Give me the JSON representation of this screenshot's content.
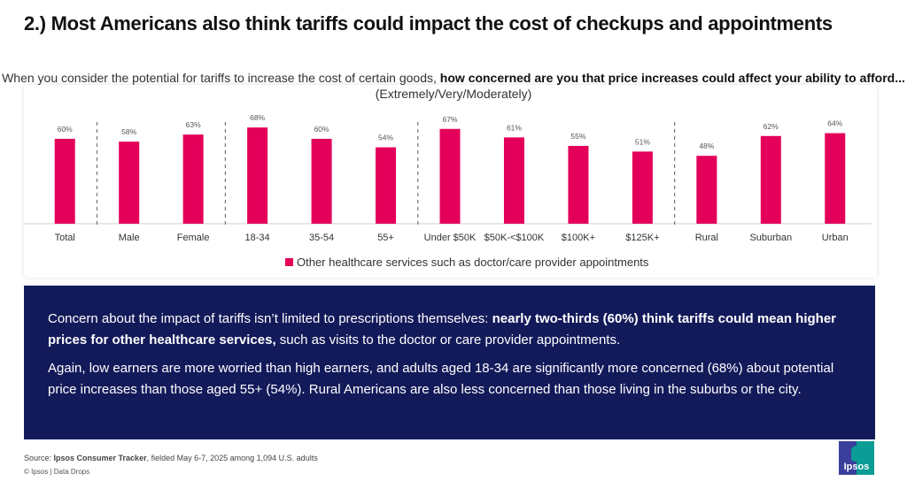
{
  "header": {
    "title": "2.) Most Americans also think tariffs could impact the cost of checkups and appointments"
  },
  "question": {
    "part1": "When you consider the potential for tariffs to increase the cost of certain goods, ",
    "bold": "how concerned are you that price increases could affect your ability to afford...",
    "part2": " (Extremely/Very/Moderately)"
  },
  "chart_data": {
    "type": "bar",
    "title": "",
    "xlabel": "",
    "ylabel": "",
    "ylim": [
      0,
      100
    ],
    "grid": false,
    "legend_position": "bottom",
    "categories": [
      "Total",
      "Male",
      "Female",
      "18-34",
      "35-54",
      "55+",
      "Under $50K",
      "$50K-<$100K",
      "$100K+",
      "$125K+",
      "Rural",
      "Suburban",
      "Urban"
    ],
    "series": [
      {
        "name": "Other healthcare services such as doctor/care provider appointments",
        "color": "#e4005a",
        "values": [
          60,
          58,
          63,
          68,
          60,
          54,
          67,
          61,
          55,
          51,
          48,
          62,
          64
        ]
      }
    ],
    "value_labels": [
      "60%",
      "58%",
      "63%",
      "68%",
      "60%",
      "54%",
      "67%",
      "61%",
      "55%",
      "51%",
      "48%",
      "62%",
      "64%"
    ],
    "group_separators_after": [
      "Total",
      "Female",
      "55+",
      "$125K+"
    ]
  },
  "insight": {
    "p1_text": "Concern about the impact of tariffs isn’t limited to prescriptions themselves: ",
    "p1_bold": "nearly two-thirds (60%)  think tariffs could mean higher prices for other healthcare services,",
    "p1_end": " such as visits to the doctor or care provider appointments.",
    "p2": "Again, low earners are more worried than high earners, and adults aged 18-34 are significantly more concerned (68%) about potential price increases than those aged 55+ (54%). Rural Americans are also less concerned than those living in the suburbs or the city."
  },
  "footer": {
    "source_label": "Source: ",
    "source_bold": "Ipsos Consumer Tracker",
    "source_rest": ", fielded May 6-7, 2025 among 1,094 U.S. adults",
    "copyright": "© Ipsos | Data Drops",
    "logo_text": "Ipsos"
  }
}
